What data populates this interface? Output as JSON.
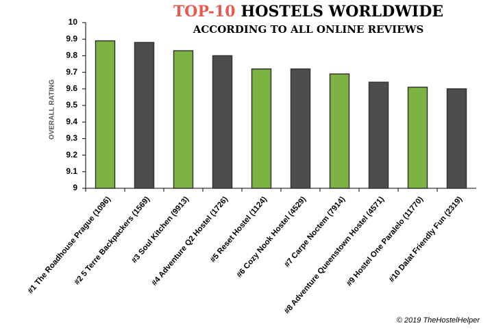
{
  "chart_data": {
    "type": "bar",
    "title": [
      "TOP-10",
      "HOSTELS WORLDWIDE"
    ],
    "subtitle": "ACCORDING TO ALL ONLINE REVIEWS",
    "y_label": "OVERALL RATING",
    "footer": "© 2019 TheHostelHelper",
    "categories": [
      "#1 The Roadhouse Prague (1096)",
      "#2 5 Terre Backpackers (1569)",
      "#3 Soul Kitchen (9913)",
      "#4 Adventure Q2 Hostel (1726)",
      "#5 Reset Hostel (1124)",
      "#6 Cozy Nook Hostel (4529)",
      "#7 Carpe Noctem (7914)",
      "#8 Adventure Queenstown Hostel (4571)",
      "#9 Hostel One Paralelo (11770)",
      "#10 Dalat Friendly Fun (2319)"
    ],
    "values": [
      9.89,
      9.88,
      9.83,
      9.8,
      9.72,
      9.72,
      9.69,
      9.64,
      9.61,
      9.6
    ],
    "colors": [
      "#7cb342",
      "#4d4d4d",
      "#7cb342",
      "#4d4d4d",
      "#7cb342",
      "#4d4d4d",
      "#7cb342",
      "#4d4d4d",
      "#7cb342",
      "#4d4d4d"
    ],
    "ylim": [
      9,
      10
    ],
    "yticks": [
      9,
      9.1,
      9.2,
      9.3,
      9.4,
      9.5,
      9.6,
      9.7,
      9.8,
      9.9,
      10
    ],
    "grid": false
  }
}
